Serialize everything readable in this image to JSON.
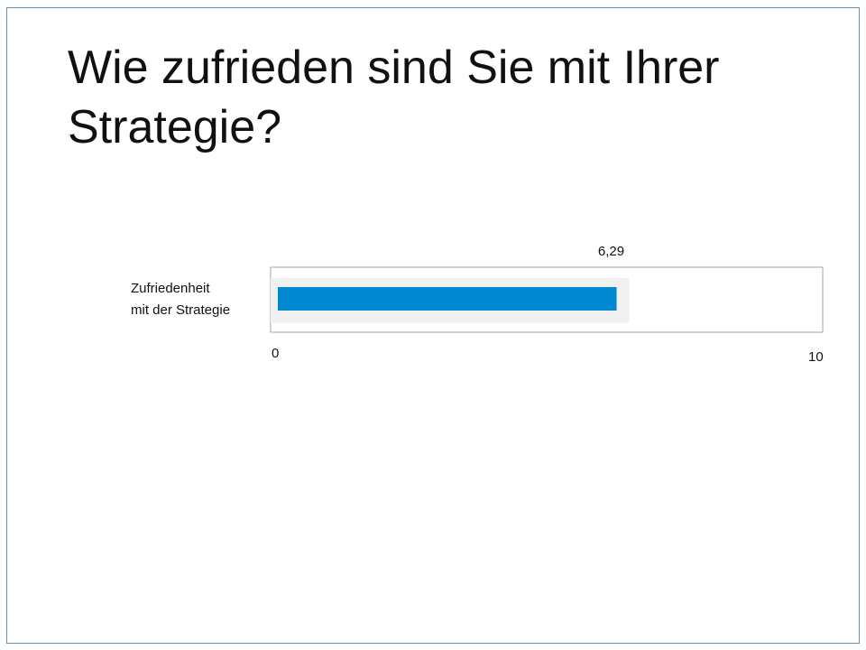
{
  "slide": {
    "title": "Wie zufrieden sind Sie mit Ihrer Strategie?"
  },
  "colors": {
    "bar": "#0088d1",
    "bar_halo": "#f0f0f0",
    "frame": "#a6a6a6",
    "slide_border": "#6a8fb7"
  },
  "chart_data": {
    "type": "bar",
    "orientation": "horizontal",
    "categories": [
      "Zufriedenheit mit der Strategie"
    ],
    "category_lines": [
      [
        "Zufriedenheit",
        "mit der Strategie"
      ]
    ],
    "values": [
      6.29
    ],
    "data_labels": [
      "6,29"
    ],
    "xlim": [
      0,
      10
    ],
    "ticks": [
      "0",
      "10"
    ],
    "grid": false,
    "legend": "none"
  }
}
